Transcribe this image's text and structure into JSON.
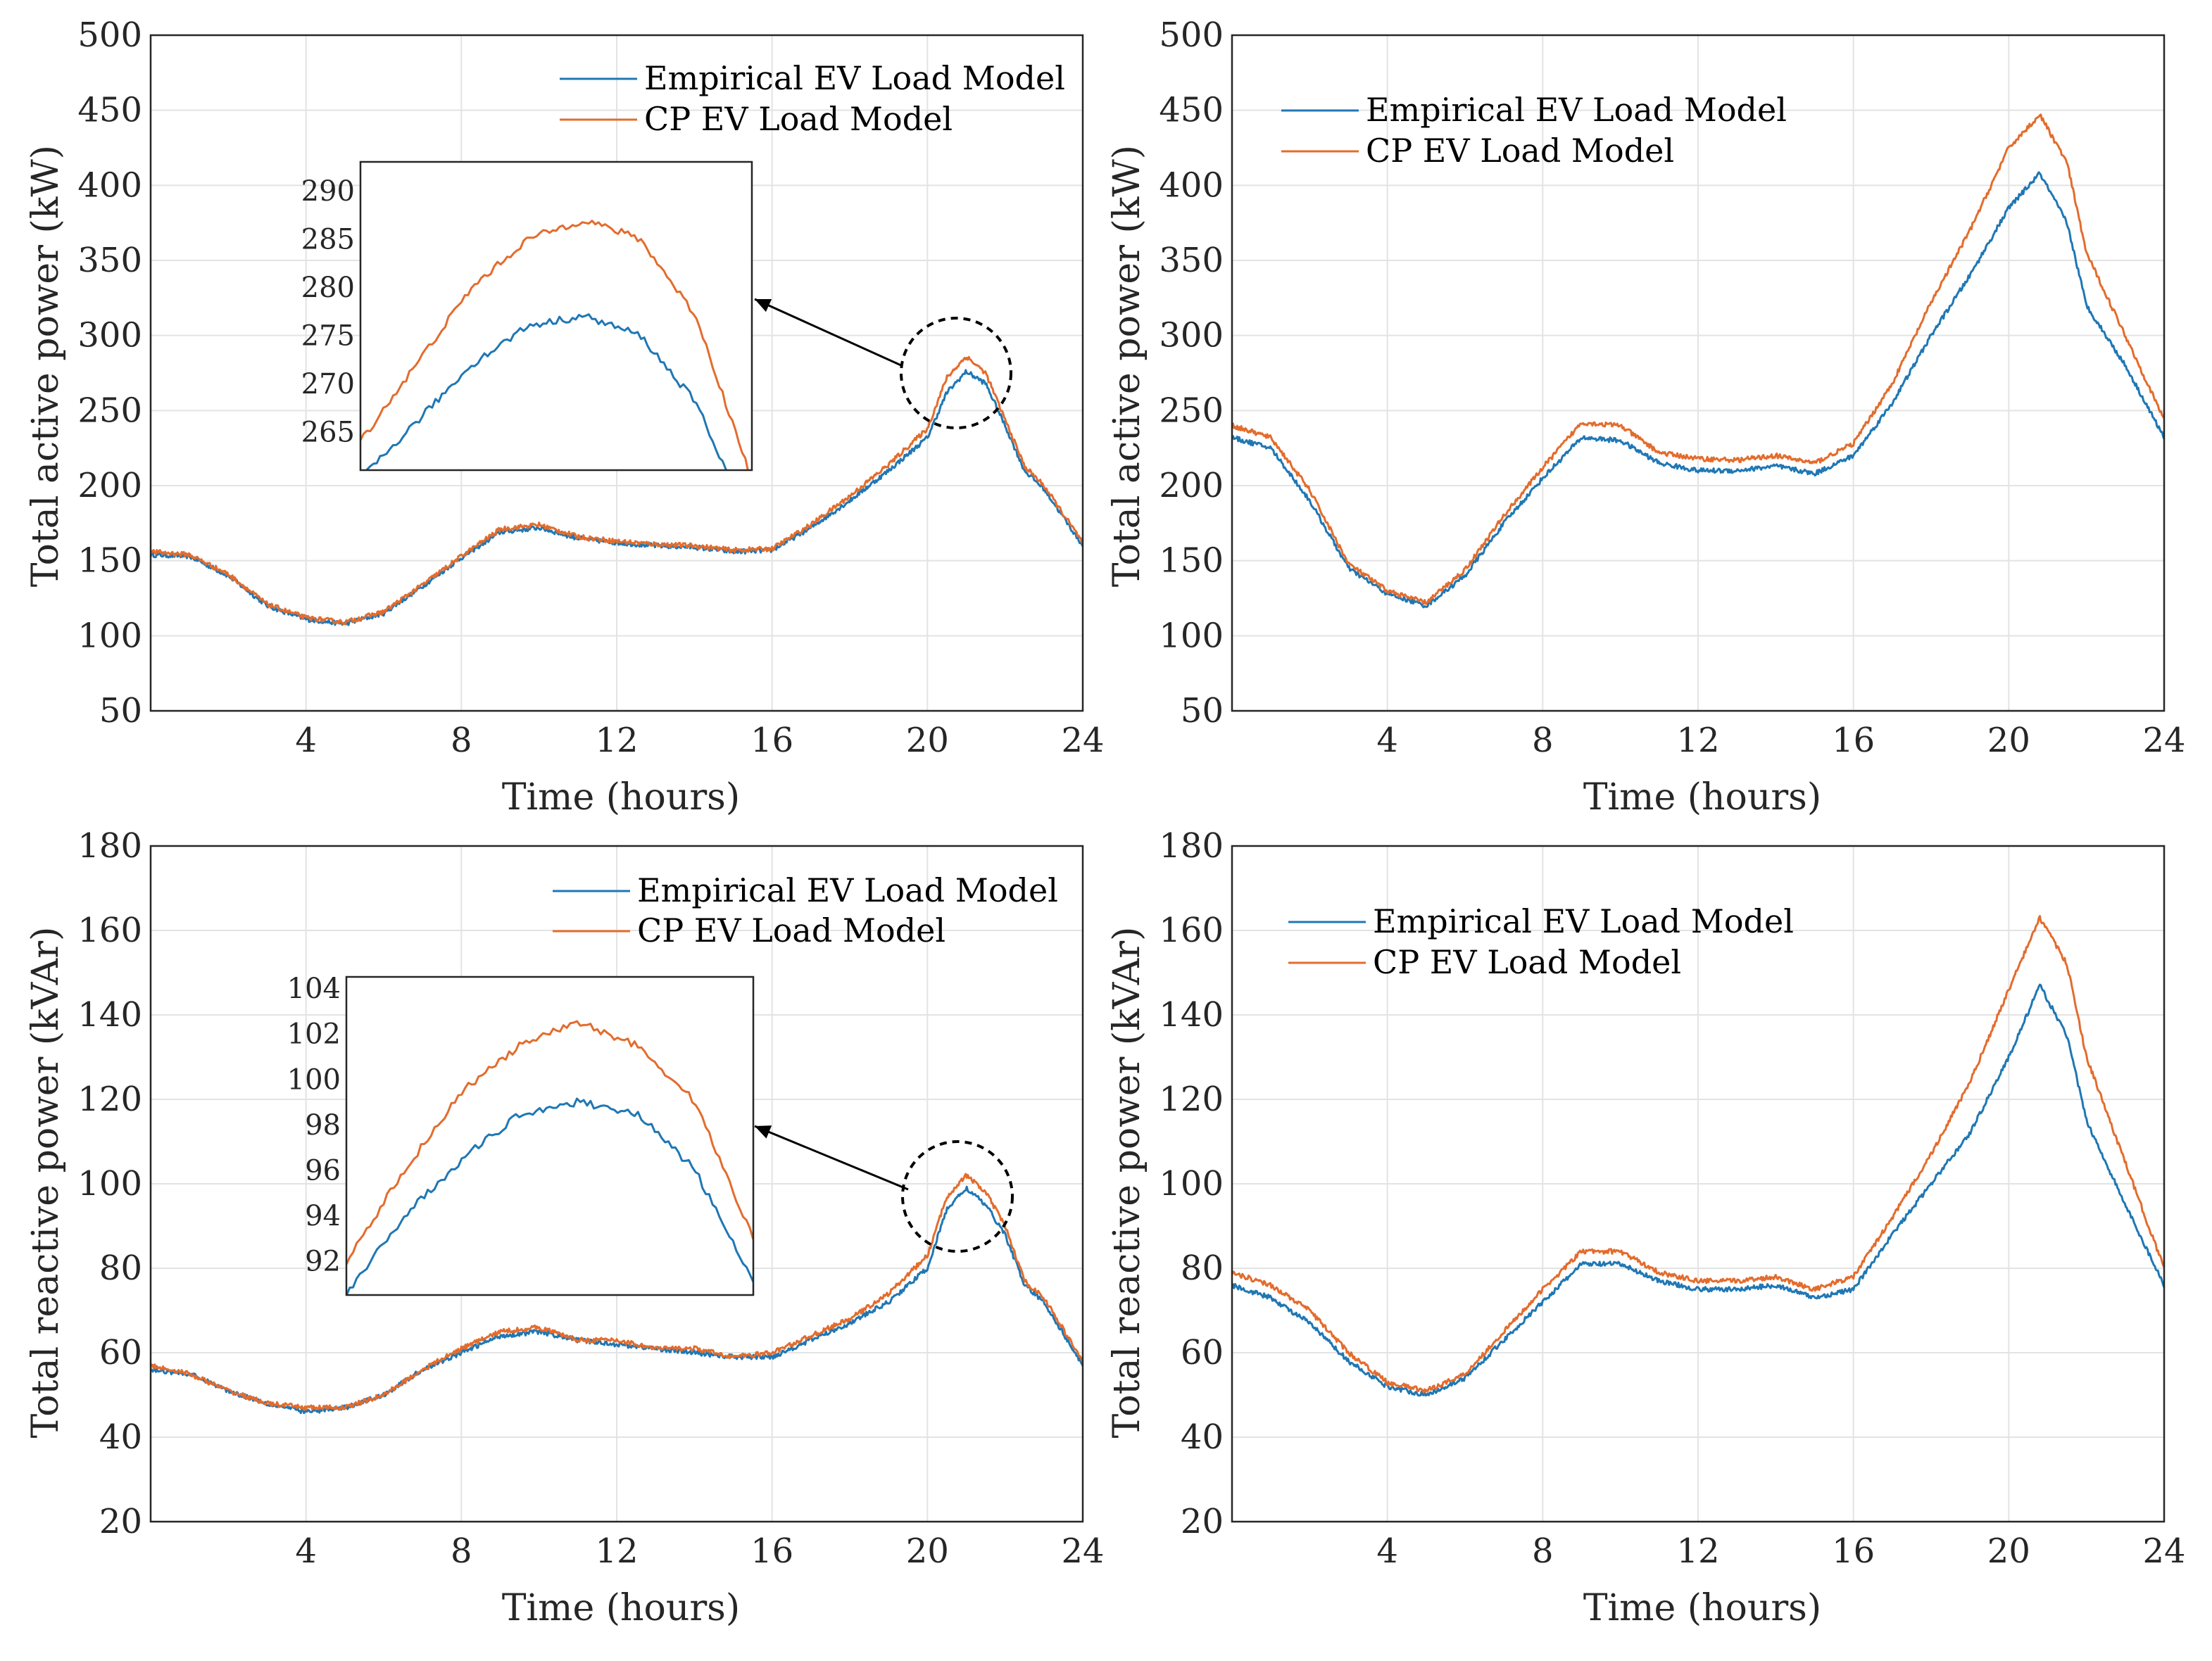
{
  "colors": {
    "empirical": "#1f77b4",
    "cp": "#e36c2d"
  },
  "chart_data": [
    {
      "id": "active-day1",
      "type": "line",
      "xlabel": "Time (hours)",
      "ylabel": "Total active power (kW)",
      "xlim": [
        0,
        24
      ],
      "ylim": [
        50,
        500
      ],
      "xticks": [
        4,
        8,
        12,
        16,
        20,
        24
      ],
      "yticks": [
        50,
        100,
        150,
        200,
        250,
        300,
        350,
        400,
        450,
        500
      ],
      "grid": true,
      "legend": {
        "position": "top-right",
        "entries": [
          "Empirical EV Load Model",
          "CP EV Load Model"
        ]
      },
      "x": [
        0,
        1,
        2,
        3,
        4,
        5,
        6,
        7,
        8,
        9,
        10,
        11,
        12,
        13,
        14,
        15,
        16,
        17,
        18,
        19,
        20,
        20.5,
        21,
        21.5,
        22,
        22.5,
        23,
        24
      ],
      "series": [
        {
          "name": "Empirical EV Load Model",
          "values": [
            154,
            153,
            140,
            120,
            111,
            108,
            115,
            133,
            152,
            169,
            172,
            165,
            162,
            160,
            159,
            156,
            157,
            172,
            190,
            210,
            232,
            262,
            276,
            268,
            240,
            210,
            198,
            160
          ]
        },
        {
          "name": "CP EV Load Model",
          "values": [
            156,
            154,
            141,
            121,
            112,
            109,
            116,
            134,
            153,
            171,
            174,
            166,
            163,
            161,
            160,
            157,
            158,
            174,
            193,
            214,
            238,
            272,
            286,
            275,
            244,
            213,
            200,
            162
          ]
        }
      ],
      "inset": {
        "yticks": [
          265,
          270,
          275,
          280,
          285,
          290
        ],
        "ylim": [
          261,
          293
        ],
        "x": [
          20.3,
          20.5,
          20.7,
          20.9,
          21.1,
          21.3,
          21.5,
          21.7
        ],
        "series": [
          {
            "name": "Empirical EV Load Model",
            "values": [
              260,
              266,
              272,
              276,
              277,
              275,
              268,
              255
            ]
          },
          {
            "name": "CP EV Load Model",
            "values": [
              264,
              272,
              280,
              285,
              287,
              285,
              277,
              260
            ]
          }
        ]
      }
    },
    {
      "id": "active-day2",
      "type": "line",
      "xlabel": "Time (hours)",
      "ylabel": "Total active power (kW)",
      "xlim": [
        0,
        24
      ],
      "ylim": [
        50,
        500
      ],
      "xticks": [
        4,
        8,
        12,
        16,
        20,
        24
      ],
      "yticks": [
        50,
        100,
        150,
        200,
        250,
        300,
        350,
        400,
        450,
        500
      ],
      "grid": true,
      "legend": {
        "position": "top-left",
        "entries": [
          "Empirical EV Load Model",
          "CP EV Load Model"
        ]
      },
      "x": [
        0,
        1,
        2,
        3,
        4,
        5,
        6,
        7,
        8,
        9,
        10,
        11,
        12,
        13,
        14,
        15,
        16,
        17,
        18,
        19,
        20,
        20.8,
        21.5,
        22,
        23,
        24
      ],
      "series": [
        {
          "name": "Empirical EV Load Model",
          "values": [
            232,
            225,
            190,
            145,
            128,
            120,
            140,
            175,
            205,
            232,
            230,
            215,
            210,
            210,
            213,
            208,
            220,
            255,
            300,
            340,
            385,
            408,
            375,
            320,
            280,
            232
          ]
        },
        {
          "name": "CP EV Load Model",
          "values": [
            240,
            232,
            197,
            148,
            130,
            122,
            144,
            180,
            212,
            242,
            240,
            222,
            218,
            217,
            220,
            215,
            228,
            268,
            322,
            370,
            425,
            447,
            415,
            355,
            300,
            244
          ]
        }
      ]
    },
    {
      "id": "reactive-day1",
      "type": "line",
      "xlabel": "Time (hours)",
      "ylabel": "Total reactive power (kVAr)",
      "xlim": [
        0,
        24
      ],
      "ylim": [
        20,
        180
      ],
      "xticks": [
        4,
        8,
        12,
        16,
        20,
        24
      ],
      "yticks": [
        20,
        40,
        60,
        80,
        100,
        120,
        140,
        160,
        180
      ],
      "grid": true,
      "legend": {
        "position": "top-right",
        "entries": [
          "Empirical EV Load Model",
          "CP EV Load Model"
        ]
      },
      "x": [
        0,
        1,
        2,
        3,
        4,
        5,
        6,
        7,
        8,
        9,
        10,
        11,
        12,
        13,
        14,
        15,
        16,
        17,
        18,
        19,
        20,
        20.5,
        21,
        21.5,
        22,
        22.5,
        23,
        24
      ],
      "series": [
        {
          "name": "Empirical EV Load Model",
          "values": [
            56,
            55,
            51,
            48,
            46,
            47,
            50,
            56,
            60,
            64,
            65,
            63,
            62,
            61,
            60,
            59,
            59,
            63,
            67,
            72,
            80,
            94,
            99,
            95,
            88,
            76,
            72,
            57
          ]
        },
        {
          "name": "CP EV Load Model",
          "values": [
            57,
            55,
            51,
            48,
            47,
            47,
            50,
            56,
            61,
            65,
            66,
            63,
            63,
            61,
            61,
            59,
            60,
            64,
            68,
            74,
            83,
            97,
            102,
            98,
            90,
            77,
            73,
            58
          ]
        }
      ],
      "inset": {
        "yticks": [
          92,
          94,
          96,
          98,
          100,
          102,
          104
        ],
        "ylim": [
          90.5,
          104.5
        ],
        "x": [
          20.3,
          20.5,
          20.7,
          20.9,
          21.1,
          21.3,
          21.5,
          21.7
        ],
        "series": [
          {
            "name": "Empirical EV Load Model",
            "values": [
              90.5,
              94,
              96.5,
              98.5,
              99,
              98.5,
              96,
              91
            ]
          },
          {
            "name": "CP EV Load Model",
            "values": [
              92,
              96,
              99.5,
              101.5,
              102.5,
              101.5,
              99,
              93
            ]
          }
        ]
      }
    },
    {
      "id": "reactive-day2",
      "type": "line",
      "xlabel": "Time (hours)",
      "ylabel": "Total reactive power (kVAr)",
      "xlim": [
        0,
        24
      ],
      "ylim": [
        20,
        180
      ],
      "xticks": [
        4,
        8,
        12,
        16,
        20,
        24
      ],
      "yticks": [
        20,
        40,
        60,
        80,
        100,
        120,
        140,
        160,
        180
      ],
      "grid": true,
      "legend": {
        "position": "top-left",
        "entries": [
          "Empirical EV Load Model",
          "CP EV Load Model"
        ]
      },
      "x": [
        0,
        1,
        2,
        3,
        4,
        5,
        6,
        7,
        8,
        9,
        10,
        11,
        12,
        13,
        14,
        15,
        16,
        17,
        18,
        19,
        20,
        20.8,
        21.5,
        22,
        23,
        24
      ],
      "series": [
        {
          "name": "Empirical EV Load Model",
          "values": [
            76,
            73,
            67,
            58,
            52,
            50,
            54,
            63,
            72,
            81,
            81,
            77,
            75,
            75,
            76,
            73,
            75,
            88,
            100,
            112,
            130,
            147,
            135,
            115,
            95,
            76
          ]
        },
        {
          "name": "CP EV Load Model",
          "values": [
            79,
            76,
            70,
            60,
            53,
            51,
            55,
            65,
            75,
            84,
            84,
            79,
            77,
            77,
            78,
            75,
            78,
            92,
            107,
            124,
            146,
            163,
            152,
            130,
            105,
            80
          ]
        }
      ]
    }
  ]
}
